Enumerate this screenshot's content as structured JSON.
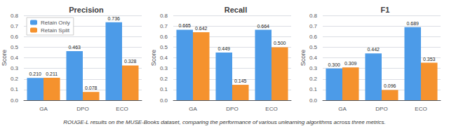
{
  "chart_data": [
    {
      "type": "bar",
      "title": "Precision",
      "ylabel": "Score",
      "categories": [
        "GA",
        "DPO",
        "ECO"
      ],
      "series": [
        {
          "name": "Retain Only",
          "color": "#4C9BE8",
          "values": [
            0.21,
            0.463,
            0.736
          ],
          "value_labels": [
            "0.210",
            "0.463",
            "0.736"
          ]
        },
        {
          "name": "Retain Split",
          "color": "#F5922E",
          "values": [
            0.211,
            0.078,
            0.328
          ],
          "value_labels": [
            "0.211",
            "0.078",
            "0.328"
          ]
        }
      ],
      "ylim": [
        0.0,
        0.8
      ],
      "yticks": [
        {
          "value": 0.0,
          "label": "0.0"
        },
        0.1,
        0.2,
        0.3,
        0.4,
        0.5,
        0.6,
        0.7,
        0.8
      ],
      "grid": true,
      "data_labels": true,
      "legend": "upper left"
    },
    {
      "type": "bar",
      "title": "Recall",
      "ylabel": "Score",
      "categories": [
        "GA",
        "DPO",
        "ECO"
      ],
      "series": [
        {
          "color": "#4C9BE8",
          "values": [
            0.665,
            0.449,
            0.664
          ],
          "value_labels": [
            "0.665",
            "0.449",
            "0.664"
          ]
        },
        {
          "color": "#F5922E",
          "values": [
            0.642,
            0.145,
            0.5
          ],
          "value_labels": [
            "0.642",
            "0.145",
            "0.500"
          ]
        }
      ],
      "ylim": [
        0.0,
        0.8
      ],
      "yticks": [
        {
          "value": 0.0,
          "label": "0.0"
        },
        0.1,
        0.2,
        0.3,
        0.4,
        0.5,
        0.6,
        0.7,
        0.8
      ],
      "grid": true,
      "data_labels": true
    },
    {
      "type": "bar",
      "title": "F1",
      "ylabel": "Score",
      "categories": [
        "GA",
        "DPO",
        "ECO"
      ],
      "series": [
        {
          "color": "#4C9BE8",
          "values": [
            0.3,
            0.442,
            0.689
          ],
          "value_labels": [
            "0.300",
            "0.442",
            "0.689"
          ]
        },
        {
          "color": "#F5922E",
          "values": [
            0.309,
            0.096,
            0.353
          ],
          "value_labels": [
            "0.309",
            "0.096",
            "0.353"
          ]
        }
      ],
      "ylim": [
        0.0,
        0.8
      ],
      "yticks": [
        {
          "value": 0.0,
          "label": "0.0"
        },
        0.1,
        0.2,
        0.3,
        0.4,
        0.5,
        0.6,
        0.7,
        0.8
      ],
      "grid": true,
      "data_labels": true
    }
  ],
  "caption": "ROUGE-L results on the MUSE-Books dataset, comparing the performance of various unlearning algorithms across three metrics."
}
